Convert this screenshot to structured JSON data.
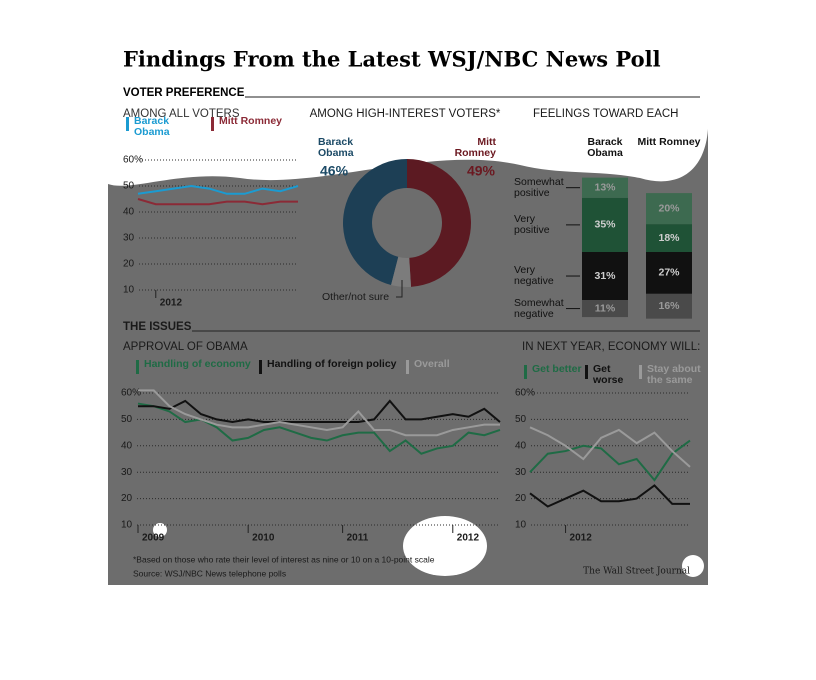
{
  "title": "Findings From the Latest WSJ/NBC News Poll",
  "sections": [
    "VOTER PREFERENCE",
    "THE ISSUES"
  ],
  "footnote": "*Based on those who rate their level of interest as nine or 10 on a 10-point scale",
  "source": "Source: WSJ/NBC News telephone polls",
  "credit": "The Wall Street Journal",
  "chart_data": [
    {
      "type": "line",
      "title": "AMONG ALL VOTERS",
      "categories": [
        null,
        "2012",
        null,
        null,
        null,
        null,
        null,
        null,
        null,
        null
      ],
      "series": [
        {
          "name": "Barack Obama",
          "color": "#1b9bd1",
          "values": [
            47,
            48,
            49,
            50,
            49,
            47,
            47,
            49,
            48,
            50
          ]
        },
        {
          "name": "Mitt Romney",
          "color": "#8b2a36",
          "values": [
            45,
            43,
            43,
            43,
            43,
            44,
            44,
            43,
            44,
            44
          ]
        }
      ],
      "ylim": [
        10,
        60
      ],
      "yticks": [
        10,
        20,
        30,
        40,
        50,
        {
          "value": 60,
          "label": "60%"
        }
      ],
      "grid": true
    },
    {
      "type": "pie",
      "donut": true,
      "title": "AMONG HIGH-INTEREST VOTERS*",
      "categories": [
        "Barack Obama",
        "Mitt Romney",
        "Other/not sure"
      ],
      "values": [
        46,
        49,
        5
      ],
      "value_labels": [
        "46%",
        "49%",
        null
      ],
      "colors": [
        "#1d3f55",
        "#5c1a22",
        "#7c7c7c"
      ],
      "label_colors": [
        "#1c4a66",
        "#6b1820",
        "#1a1a1a"
      ]
    },
    {
      "type": "bar",
      "stacked": true,
      "title": "FEELINGS TOWARD EACH",
      "categories": [
        "Somewhat positive",
        "Very positive",
        "Very negative",
        "Somewhat negative"
      ],
      "sides": [
        "up",
        "up",
        "down",
        "down"
      ],
      "colors": [
        "#3d6a50",
        "#1f5236",
        "#111111",
        "#4a4a4a"
      ],
      "series": [
        {
          "name": "Barack Obama",
          "values": [
            13,
            35,
            31,
            11
          ],
          "value_labels": [
            "13%",
            "35%",
            "31%",
            "11%"
          ]
        },
        {
          "name": "Mitt Romney",
          "values": [
            20,
            18,
            27,
            16
          ],
          "value_labels": [
            "20%",
            "18%",
            "27%",
            "16%"
          ]
        }
      ]
    },
    {
      "type": "line",
      "title": "APPROVAL OF OBAMA",
      "categories": [
        "2009",
        null,
        null,
        null,
        null,
        null,
        null,
        "2010",
        null,
        null,
        null,
        null,
        null,
        "2011",
        null,
        null,
        null,
        null,
        null,
        null,
        "2012",
        null,
        null,
        null
      ],
      "series": [
        {
          "name": "Handling of economy",
          "color": "#1f6b45",
          "values": [
            56,
            55,
            53,
            49,
            50,
            47,
            42,
            43,
            46,
            47,
            45,
            43,
            42,
            44,
            45,
            45,
            38,
            42,
            37,
            39,
            40,
            45,
            44,
            46
          ]
        },
        {
          "name": "Handling of foreign policy",
          "color": "#111111",
          "values": [
            55,
            55,
            54,
            57,
            52,
            50,
            49,
            50,
            49,
            49,
            49,
            49,
            49,
            49,
            49,
            50,
            57,
            50,
            50,
            51,
            52,
            51,
            54,
            49
          ]
        },
        {
          "name": "Overall",
          "color": "#9a9a9a",
          "values": [
            61,
            61,
            55,
            52,
            50,
            48,
            47,
            47,
            48,
            49,
            48,
            47,
            46,
            47,
            53,
            46,
            46,
            44,
            44,
            44,
            46,
            47,
            48,
            48
          ]
        }
      ],
      "ylim": [
        10,
        60
      ],
      "yticks": [
        10,
        20,
        30,
        40,
        50,
        {
          "value": 60,
          "label": "60%"
        }
      ],
      "grid": true
    },
    {
      "type": "line",
      "title": "IN NEXT YEAR, ECONOMY WILL:",
      "categories": [
        null,
        null,
        "2012",
        null,
        null,
        null,
        null,
        null,
        null,
        null
      ],
      "series": [
        {
          "name": "Get better",
          "color": "#1f6b45",
          "values": [
            30,
            37,
            38,
            40,
            39,
            33,
            35,
            27,
            37,
            42
          ]
        },
        {
          "name": "Get worse",
          "color": "#111111",
          "values": [
            22,
            17,
            20,
            23,
            19,
            19,
            20,
            25,
            18,
            18
          ]
        },
        {
          "name": "Stay about the same",
          "color": "#9a9a9a",
          "values": [
            47,
            44,
            40,
            35,
            43,
            46,
            41,
            45,
            38,
            32
          ]
        }
      ],
      "ylim": [
        10,
        60
      ],
      "yticks": [
        10,
        20,
        30,
        40,
        50,
        {
          "value": 60,
          "label": "60%"
        }
      ],
      "grid": true
    }
  ]
}
